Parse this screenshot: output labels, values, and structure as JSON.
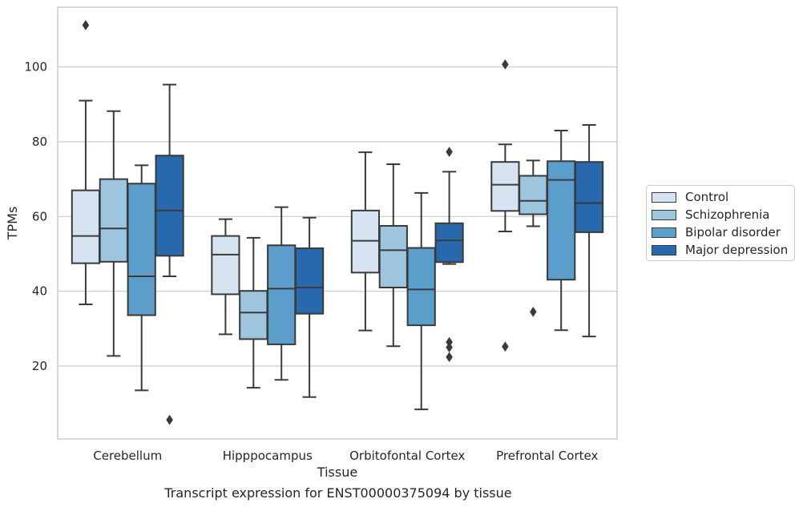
{
  "chart_data": {
    "type": "box",
    "ylabel": "TPMs",
    "xlabel": "Tissue",
    "caption": "Transcript expression for ENST00000375094 by tissue",
    "categories": [
      "Cerebellum",
      "Hipppocampus",
      "Orbitofontal Cortex",
      "Prefrontal Cortex"
    ],
    "ylim": [
      0.5,
      116
    ],
    "yticks": [
      20,
      40,
      60,
      80,
      100
    ],
    "grid": "horizontal",
    "legend_position": "right",
    "series": [
      {
        "name": "Control",
        "color": "#d6e4f2",
        "boxes": [
          {
            "whisker_low": 36.5,
            "q1": 47.5,
            "median": 54.8,
            "q3": 67.0,
            "whisker_high": 91.0,
            "outliers": [
              111.2
            ]
          },
          {
            "whisker_low": 28.5,
            "q1": 39.2,
            "median": 49.8,
            "q3": 54.8,
            "whisker_high": 59.3,
            "outliers": []
          },
          {
            "whisker_low": 29.5,
            "q1": 45.0,
            "median": 53.5,
            "q3": 61.6,
            "whisker_high": 77.2,
            "outliers": []
          },
          {
            "whisker_low": 56.0,
            "q1": 61.5,
            "median": 68.5,
            "q3": 74.6,
            "whisker_high": 79.3,
            "outliers": [
              100.7,
              25.2
            ]
          }
        ]
      },
      {
        "name": "Schizophrenia",
        "color": "#9dc5de",
        "boxes": [
          {
            "whisker_low": 22.7,
            "q1": 47.9,
            "median": 56.8,
            "q3": 70.0,
            "whisker_high": 88.2,
            "outliers": []
          },
          {
            "whisker_low": 14.2,
            "q1": 27.2,
            "median": 34.3,
            "q3": 40.1,
            "whisker_high": 54.3,
            "outliers": []
          },
          {
            "whisker_low": 25.3,
            "q1": 41.0,
            "median": 51.0,
            "q3": 57.5,
            "whisker_high": 74.0,
            "outliers": []
          },
          {
            "whisker_low": 57.4,
            "q1": 60.6,
            "median": 64.2,
            "q3": 70.9,
            "whisker_high": 75.0,
            "outliers": [
              34.5
            ]
          }
        ]
      },
      {
        "name": "Bipolar disorder",
        "color": "#5c9ecb",
        "boxes": [
          {
            "whisker_low": 13.5,
            "q1": 33.6,
            "median": 44.0,
            "q3": 68.8,
            "whisker_high": 73.7,
            "outliers": []
          },
          {
            "whisker_low": 16.3,
            "q1": 25.8,
            "median": 40.7,
            "q3": 52.3,
            "whisker_high": 62.5,
            "outliers": []
          },
          {
            "whisker_low": 8.4,
            "q1": 30.9,
            "median": 40.5,
            "q3": 51.6,
            "whisker_high": 66.3,
            "outliers": []
          },
          {
            "whisker_low": 29.6,
            "q1": 43.1,
            "median": 69.8,
            "q3": 74.8,
            "whisker_high": 83.0,
            "outliers": []
          }
        ]
      },
      {
        "name": "Major depression",
        "color": "#2868ad",
        "boxes": [
          {
            "whisker_low": 44.0,
            "q1": 49.5,
            "median": 61.6,
            "q3": 76.3,
            "whisker_high": 95.3,
            "outliers": [
              5.6
            ]
          },
          {
            "whisker_low": 11.7,
            "q1": 34.0,
            "median": 41.0,
            "q3": 51.5,
            "whisker_high": 59.7,
            "outliers": []
          },
          {
            "whisker_low": 47.3,
            "q1": 47.8,
            "median": 53.6,
            "q3": 58.2,
            "whisker_high": 72.0,
            "outliers": [
              77.3,
              26.4,
              25.0,
              22.4
            ]
          },
          {
            "whisker_low": 27.9,
            "q1": 55.8,
            "median": 63.6,
            "q3": 74.6,
            "whisker_high": 84.5,
            "outliers": []
          }
        ]
      }
    ]
  }
}
